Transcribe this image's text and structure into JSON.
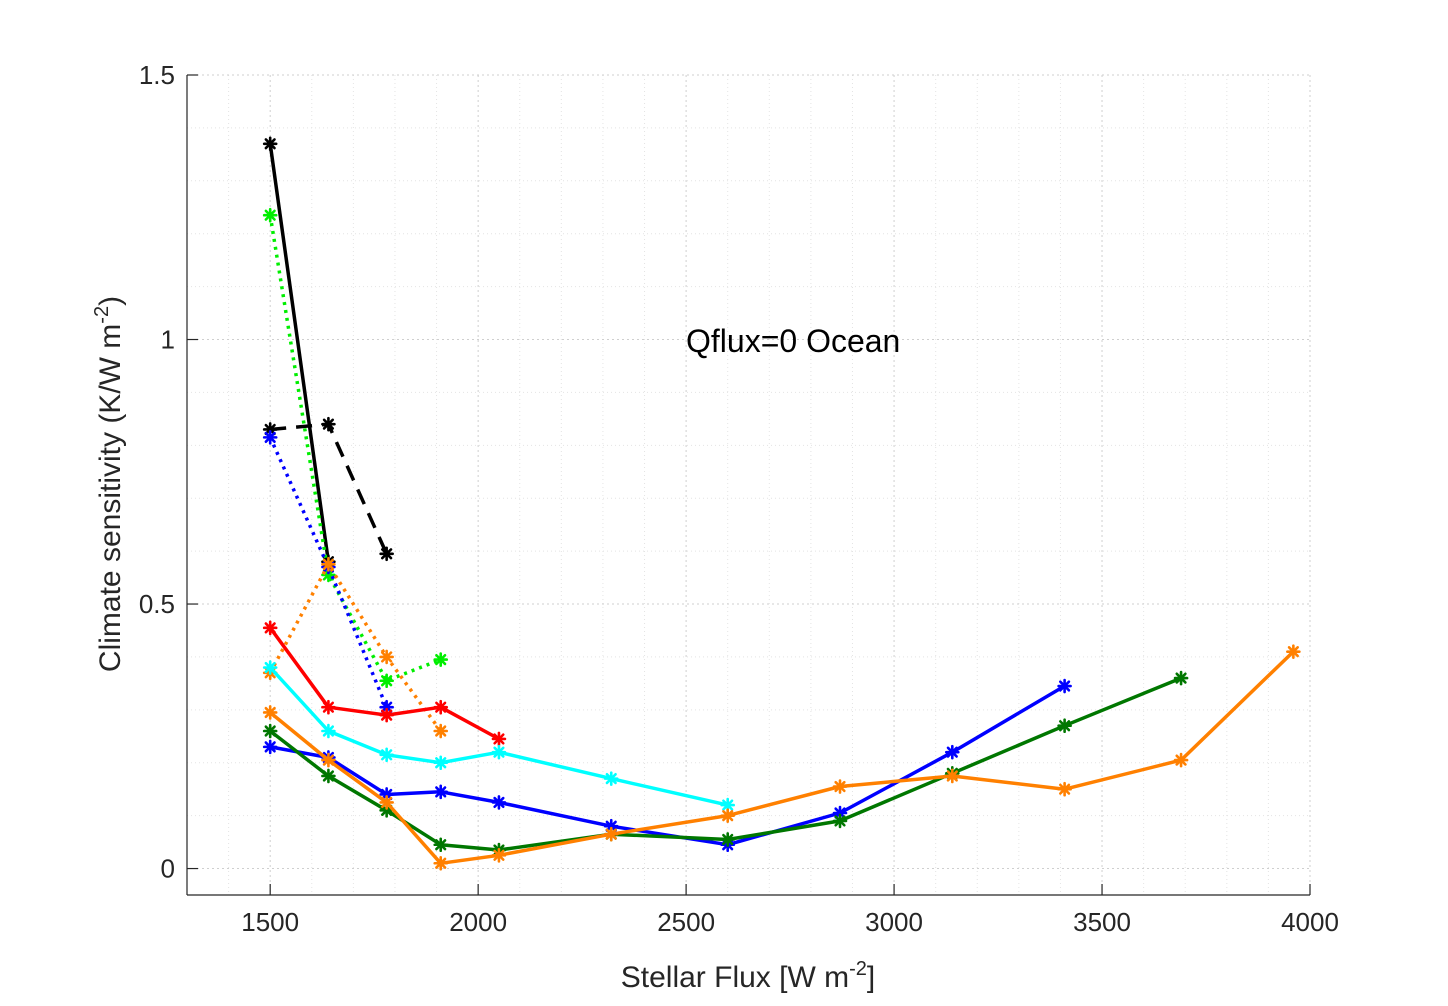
{
  "chart_data": {
    "type": "line",
    "annotation": "Qflux=0 Ocean",
    "xlabel": {
      "main": "Stellar Flux [W m",
      "sup": "-2",
      "tail": "]"
    },
    "ylabel": {
      "main": "Climate sensitivity (K/W m",
      "sup": "-2",
      "tail": ")"
    },
    "xlim": [
      1300,
      4000
    ],
    "ylim": [
      -0.05,
      1.5
    ],
    "xticks": [
      1500,
      2000,
      2500,
      3000,
      3500,
      4000
    ],
    "xtick_labels": [
      "1500",
      "2000",
      "2500",
      "3000",
      "3500",
      "4000"
    ],
    "yticks": [
      0,
      0.5,
      1,
      1.5
    ],
    "ytick_labels": [
      "0",
      "0.5",
      "1",
      "1.5"
    ],
    "grid": true,
    "minor_grid": true,
    "legend": "none",
    "series": [
      {
        "name": "black-solid",
        "color": "#000000",
        "style": "solid",
        "x": [
          1500,
          1640
        ],
        "y": [
          1.37,
          0.58
        ]
      },
      {
        "name": "black-dashed",
        "color": "#000000",
        "style": "dashed",
        "x": [
          1500,
          1640,
          1780
        ],
        "y": [
          0.83,
          0.84,
          0.595
        ]
      },
      {
        "name": "green-dotted",
        "color": "#00ee00",
        "style": "dotted",
        "x": [
          1500,
          1640,
          1780,
          1910
        ],
        "y": [
          1.235,
          0.555,
          0.355,
          0.395
        ]
      },
      {
        "name": "blue-dotted",
        "color": "#0000ff",
        "style": "dotted",
        "x": [
          1500,
          1640,
          1780
        ],
        "y": [
          0.815,
          0.57,
          0.305
        ]
      },
      {
        "name": "orange-dotted",
        "color": "#ff8000",
        "style": "dotted",
        "x": [
          1500,
          1640,
          1780,
          1910
        ],
        "y": [
          0.37,
          0.575,
          0.4,
          0.26
        ]
      },
      {
        "name": "red",
        "color": "#ff0000",
        "style": "solid",
        "x": [
          1500,
          1640,
          1780,
          1910,
          2050
        ],
        "y": [
          0.455,
          0.305,
          0.29,
          0.305,
          0.245
        ]
      },
      {
        "name": "cyan",
        "color": "#00ffff",
        "style": "solid",
        "x": [
          1500,
          1640,
          1780,
          1910,
          2050,
          2320,
          2600
        ],
        "y": [
          0.38,
          0.26,
          0.215,
          0.2,
          0.22,
          0.17,
          0.12
        ]
      },
      {
        "name": "blue",
        "color": "#0000ff",
        "style": "solid",
        "x": [
          1500,
          1640,
          1780,
          1910,
          2050,
          2320,
          2600,
          2870,
          3140,
          3410
        ],
        "y": [
          0.23,
          0.21,
          0.14,
          0.145,
          0.125,
          0.08,
          0.045,
          0.105,
          0.22,
          0.345
        ]
      },
      {
        "name": "green",
        "color": "#007700",
        "style": "solid",
        "x": [
          1500,
          1640,
          1780,
          1910,
          2050,
          2320,
          2600,
          2870,
          3140,
          3410,
          3690
        ],
        "y": [
          0.26,
          0.175,
          0.11,
          0.045,
          0.035,
          0.065,
          0.055,
          0.09,
          0.18,
          0.27,
          0.36
        ]
      },
      {
        "name": "orange",
        "color": "#ff8000",
        "style": "solid",
        "x": [
          1500,
          1640,
          1780,
          1910,
          2050,
          2320,
          2600,
          2870,
          3140,
          3410,
          3690,
          3960
        ],
        "y": [
          0.295,
          0.205,
          0.125,
          0.01,
          0.025,
          0.065,
          0.1,
          0.155,
          0.175,
          0.15,
          0.205,
          0.41
        ]
      }
    ]
  }
}
